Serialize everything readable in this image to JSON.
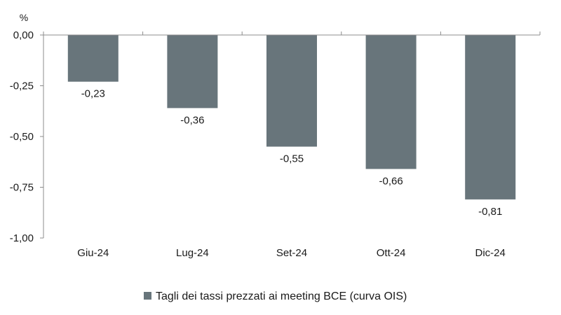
{
  "chart_data": {
    "type": "bar",
    "categories": [
      "Giu-24",
      "Lug-24",
      "Set-24",
      "Ott-24",
      "Dic-24"
    ],
    "series": [
      {
        "name": "Tagli dei tassi prezzati ai meeting BCE (curva OIS)",
        "values": [
          -0.23,
          -0.36,
          -0.55,
          -0.66,
          -0.81
        ],
        "labels": [
          "-0,23",
          "-0,36",
          "-0,55",
          "-0,66",
          "-0,81"
        ],
        "color": "#68757b"
      }
    ],
    "unit": "%",
    "ylim": [
      -1.0,
      0.0
    ],
    "yticks": [
      0.0,
      -0.25,
      -0.5,
      -0.75,
      -1.0
    ],
    "ytick_labels": [
      "0,00",
      "-0,25",
      "-0,50",
      "-0,75",
      "-1,00"
    ],
    "grid": false,
    "legend_position": "bottom-center"
  }
}
